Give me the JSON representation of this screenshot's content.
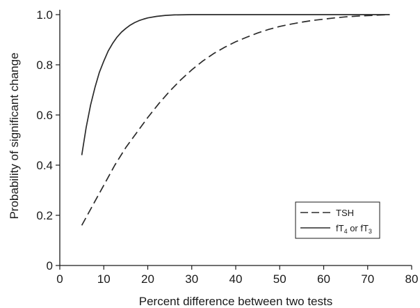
{
  "chart_data": {
    "type": "line",
    "title": "",
    "xlabel": "Percent difference between two tests",
    "ylabel": "Probability of significant change",
    "xlim": [
      0,
      80
    ],
    "ylim": [
      0,
      1.05
    ],
    "x_ticks": [
      0,
      10,
      20,
      30,
      40,
      50,
      60,
      70,
      80
    ],
    "x_tick_labels": [
      "0",
      "10",
      "20",
      "30",
      "40",
      "50",
      "60",
      "70",
      "80"
    ],
    "y_ticks": [
      0,
      0.2,
      0.4,
      0.6,
      0.8,
      1.0
    ],
    "y_tick_labels": [
      "0",
      "0.2",
      "0.4",
      "0.6",
      "0.8",
      "1.0"
    ],
    "grid": false,
    "legend_position": "bottom-right",
    "series": [
      {
        "name": "TSH",
        "style": "dashed",
        "color": "#2a2a2a",
        "points": [
          [
            5,
            0.16
          ],
          [
            7.5,
            0.24
          ],
          [
            10,
            0.32
          ],
          [
            12.5,
            0.4
          ],
          [
            15,
            0.47
          ],
          [
            17.5,
            0.53
          ],
          [
            20,
            0.59
          ],
          [
            22.5,
            0.645
          ],
          [
            25,
            0.695
          ],
          [
            27.5,
            0.74
          ],
          [
            30,
            0.78
          ],
          [
            32.5,
            0.815
          ],
          [
            35,
            0.845
          ],
          [
            37.5,
            0.87
          ],
          [
            40,
            0.892
          ],
          [
            42.5,
            0.91
          ],
          [
            45,
            0.927
          ],
          [
            47.5,
            0.941
          ],
          [
            50,
            0.953
          ],
          [
            52.5,
            0.962
          ],
          [
            55,
            0.97
          ],
          [
            57.5,
            0.977
          ],
          [
            60,
            0.982
          ],
          [
            62.5,
            0.987
          ],
          [
            65,
            0.991
          ],
          [
            67.5,
            0.994
          ],
          [
            70,
            0.996
          ],
          [
            72.5,
            0.998
          ],
          [
            75,
            1.0
          ]
        ]
      },
      {
        "name": "fT4 or fT3",
        "style": "solid",
        "color": "#2a2a2a",
        "points": [
          [
            5,
            0.44
          ],
          [
            6,
            0.55
          ],
          [
            7,
            0.64
          ],
          [
            8,
            0.71
          ],
          [
            9,
            0.77
          ],
          [
            10,
            0.815
          ],
          [
            11,
            0.855
          ],
          [
            12,
            0.885
          ],
          [
            13,
            0.91
          ],
          [
            14,
            0.93
          ],
          [
            15,
            0.945
          ],
          [
            16,
            0.958
          ],
          [
            17,
            0.968
          ],
          [
            18,
            0.976
          ],
          [
            19,
            0.982
          ],
          [
            20,
            0.987
          ],
          [
            22,
            0.993
          ],
          [
            24,
            0.997
          ],
          [
            26,
            0.999
          ],
          [
            30,
            1.0
          ],
          [
            40,
            1.0
          ],
          [
            50,
            1.0
          ],
          [
            60,
            1.0
          ],
          [
            75,
            1.0
          ]
        ]
      }
    ],
    "legend": {
      "entries": [
        {
          "series": 0,
          "label_main": "TSH",
          "label_parts": []
        },
        {
          "series": 1,
          "label_parts": [
            {
              "text": "fT",
              "sub": false
            },
            {
              "text": "4",
              "sub": true
            },
            {
              "text": " or fT",
              "sub": false
            },
            {
              "text": "3",
              "sub": true
            }
          ]
        }
      ]
    }
  }
}
